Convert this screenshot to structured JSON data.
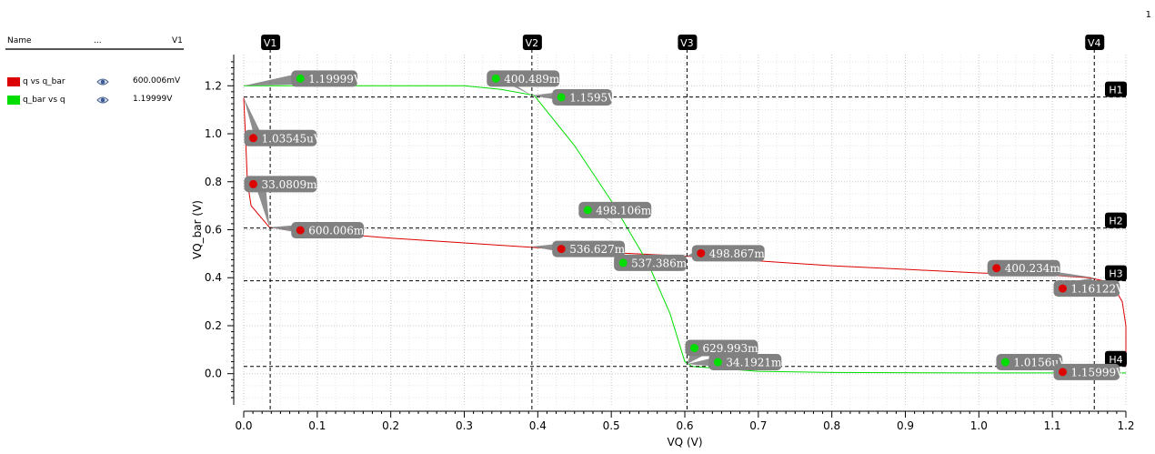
{
  "page_number": "1",
  "legend": {
    "col_name": "Name",
    "col_dots": "...",
    "col_value": "V1",
    "entries": [
      {
        "name": "q vs q_bar",
        "color": "#dd0000",
        "value": "600.006mV",
        "icon": "eye-icon"
      },
      {
        "name": "q_bar vs q",
        "color": "#00dd00",
        "value": "1.19999V",
        "icon": "eye-icon"
      }
    ]
  },
  "chart_data": {
    "type": "line",
    "xlabel": "VQ (V)",
    "ylabel": "VQ_bar (V)",
    "xlim": [
      0.0,
      1.2
    ],
    "ylim": [
      -0.13,
      1.33
    ],
    "xticks": [
      "0.0",
      "0.1",
      "0.2",
      "0.3",
      "0.4",
      "0.5",
      "0.6",
      "0.7",
      "0.8",
      "0.9",
      "1.0",
      "1.1",
      "1.2"
    ],
    "yticks": [
      "0.0",
      "0.2",
      "0.4",
      "0.6",
      "0.8",
      "1.0",
      "1.2"
    ],
    "grid": true,
    "series": [
      {
        "name": "q vs q_bar",
        "color": "#dd0000",
        "points": [
          [
            0,
            1.15
          ],
          [
            0.003,
            0.95
          ],
          [
            0.005,
            0.8
          ],
          [
            0.01,
            0.7
          ],
          [
            0.035,
            0.61
          ],
          [
            0.1,
            0.59
          ],
          [
            0.2,
            0.565
          ],
          [
            0.3,
            0.545
          ],
          [
            0.4,
            0.525
          ],
          [
            0.5,
            0.505
          ],
          [
            0.6,
            0.49
          ],
          [
            0.7,
            0.47
          ],
          [
            0.8,
            0.45
          ],
          [
            0.9,
            0.435
          ],
          [
            1.0,
            0.42
          ],
          [
            1.1,
            0.41
          ],
          [
            1.15,
            0.4
          ],
          [
            1.18,
            0.38
          ],
          [
            1.195,
            0.3
          ],
          [
            1.2,
            0.2
          ],
          [
            1.2,
            0.03
          ]
        ]
      },
      {
        "name": "q_bar vs q",
        "color": "#00dd00",
        "points": [
          [
            0,
            1.2
          ],
          [
            0.3,
            1.2
          ],
          [
            0.35,
            1.185
          ],
          [
            0.395,
            1.16
          ],
          [
            0.45,
            0.95
          ],
          [
            0.5,
            0.72
          ],
          [
            0.55,
            0.46
          ],
          [
            0.58,
            0.25
          ],
          [
            0.6,
            0.05
          ],
          [
            0.61,
            0.03
          ],
          [
            0.7,
            0.01
          ],
          [
            0.8,
            0.005
          ],
          [
            1.0,
            0.003
          ],
          [
            1.2,
            0.003
          ]
        ]
      }
    ],
    "vcursors": [
      {
        "label": "V1",
        "x": 0.036
      },
      {
        "label": "V2",
        "x": 0.392
      },
      {
        "label": "V3",
        "x": 0.603
      },
      {
        "label": "V4",
        "x": 1.157
      }
    ],
    "hcursors": [
      {
        "label": "H1",
        "y": 1.153
      },
      {
        "label": "H2",
        "y": 0.607
      },
      {
        "label": "H3",
        "y": 0.387
      },
      {
        "label": "H4",
        "y": 0.03
      }
    ],
    "markers": [
      {
        "text": "1.19999V",
        "series": 1,
        "dot": [
          0.077,
          1.23
        ],
        "anchor": [
          0.0,
          1.2
        ]
      },
      {
        "text": "1.03545uV",
        "series": 0,
        "dot": [
          0.013,
          0.982
        ],
        "anchor": [
          0.0,
          1.15
        ]
      },
      {
        "text": "33.0809mV",
        "series": 0,
        "dot": [
          0.013,
          0.79
        ],
        "anchor": [
          0.035,
          0.61
        ]
      },
      {
        "text": "600.006mV",
        "series": 0,
        "dot": [
          0.077,
          0.598
        ],
        "anchor": [
          0.035,
          0.61
        ]
      },
      {
        "text": "400.489mV",
        "series": 1,
        "dot": [
          0.343,
          1.23
        ],
        "anchor": [
          0.392,
          1.16
        ]
      },
      {
        "text": "1.1595V",
        "series": 1,
        "dot": [
          0.432,
          1.152
        ],
        "anchor": [
          0.392,
          1.16
        ]
      },
      {
        "text": "498.106mV",
        "series": 1,
        "dot": [
          0.468,
          0.682
        ],
        "anchor": [
          0.505,
          0.62
        ]
      },
      {
        "text": "536.627mV",
        "series": 0,
        "dot": [
          0.432,
          0.52
        ],
        "anchor": [
          0.392,
          0.53
        ]
      },
      {
        "text": "537.386mV",
        "series": 1,
        "dot": [
          0.516,
          0.462
        ],
        "anchor": [
          0.54,
          0.49
        ]
      },
      {
        "text": "498.867mV",
        "series": 0,
        "dot": [
          0.622,
          0.502
        ],
        "anchor": [
          0.603,
          0.49
        ]
      },
      {
        "text": "629.993mV",
        "series": 1,
        "dot": [
          0.613,
          0.107
        ],
        "anchor": [
          0.603,
          0.04
        ]
      },
      {
        "text": "34.1921mV",
        "series": 1,
        "dot": [
          0.645,
          0.048
        ],
        "anchor": [
          0.603,
          0.04
        ]
      },
      {
        "text": "400.234mV",
        "series": 0,
        "dot": [
          1.024,
          0.44
        ],
        "anchor": [
          1.157,
          0.4
        ]
      },
      {
        "text": "1.16122V",
        "series": 0,
        "dot": [
          1.114,
          0.355
        ],
        "anchor": [
          1.157,
          0.4
        ]
      },
      {
        "text": "1.0156uV",
        "series": 1,
        "dot": [
          1.036,
          0.048
        ],
        "anchor": [
          1.157,
          0.003
        ]
      },
      {
        "text": "1.15999V",
        "series": 0,
        "dot": [
          1.114,
          0.007
        ],
        "anchor": [
          1.157,
          0.003
        ]
      }
    ]
  }
}
